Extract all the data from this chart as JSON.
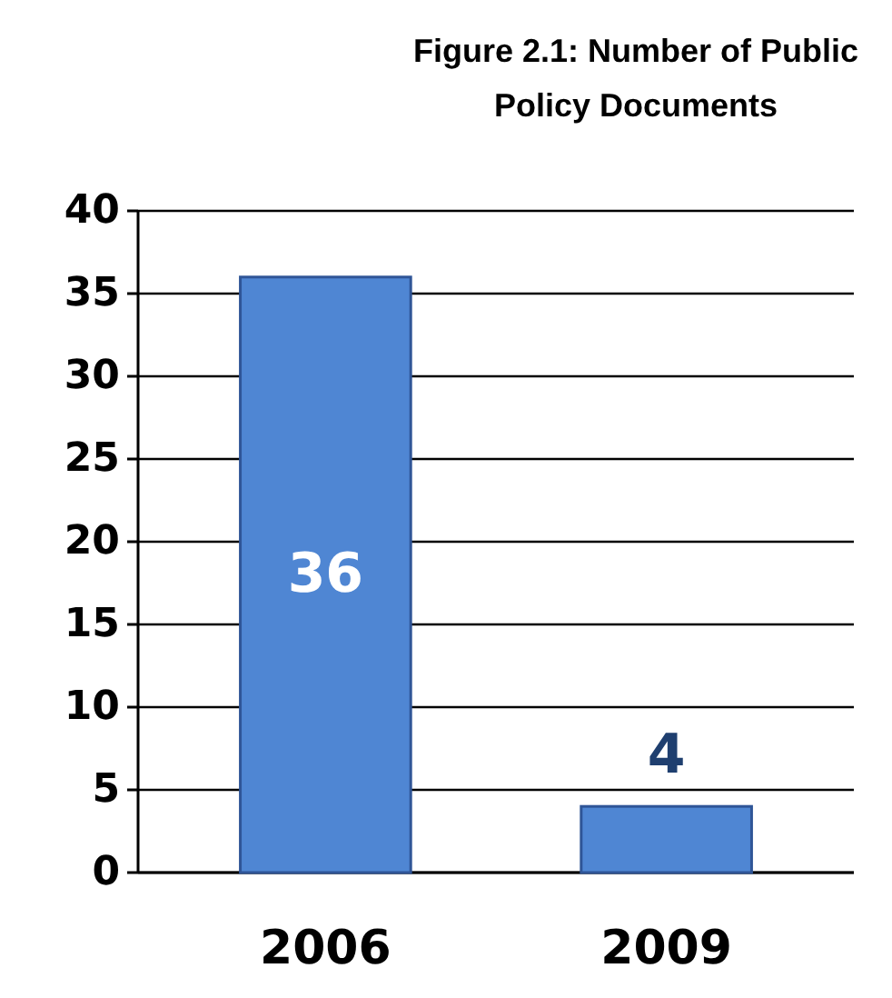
{
  "chart_data": {
    "type": "bar",
    "title": "Figure 2.1: Number of Public Policy Documents",
    "categories": [
      "2006",
      "2009"
    ],
    "values": [
      36,
      4
    ],
    "color": "#4f86d3",
    "ylim": [
      0,
      40
    ],
    "yticks": [
      0,
      5,
      10,
      15,
      20,
      25,
      30,
      35,
      40
    ],
    "grid": "y",
    "data_labels": true
  }
}
